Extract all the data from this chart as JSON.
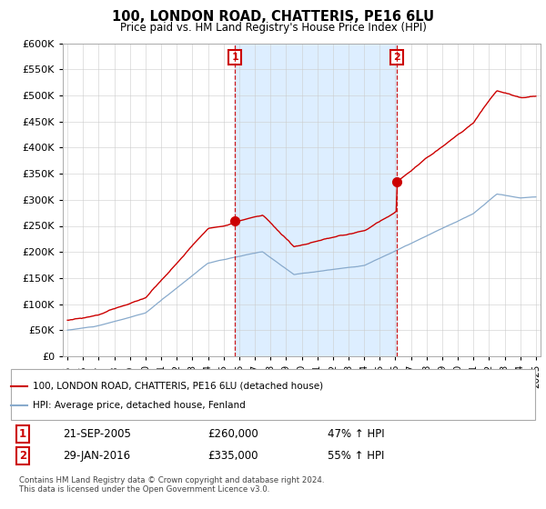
{
  "title": "100, LONDON ROAD, CHATTERIS, PE16 6LU",
  "subtitle": "Price paid vs. HM Land Registry's House Price Index (HPI)",
  "ylim": [
    0,
    600000
  ],
  "yticks": [
    0,
    50000,
    100000,
    150000,
    200000,
    250000,
    300000,
    350000,
    400000,
    450000,
    500000,
    550000,
    600000
  ],
  "xlim_start": 1994.7,
  "xlim_end": 2025.3,
  "sale1_date": 2005.73,
  "sale1_label": "1",
  "sale1_price": 260000,
  "sale1_hpi_pct": "47% ↑ HPI",
  "sale1_date_str": "21-SEP-2005",
  "sale2_date": 2016.08,
  "sale2_label": "2",
  "sale2_price": 335000,
  "sale2_hpi_pct": "55% ↑ HPI",
  "sale2_date_str": "29-JAN-2016",
  "red_color": "#cc0000",
  "blue_color": "#88aacc",
  "shade_color": "#ddeeff",
  "annotation_box_color": "#cc0000",
  "legend_label_red": "100, LONDON ROAD, CHATTERIS, PE16 6LU (detached house)",
  "legend_label_blue": "HPI: Average price, detached house, Fenland",
  "footer": "Contains HM Land Registry data © Crown copyright and database right 2024.\nThis data is licensed under the Open Government Licence v3.0.",
  "background_color": "#ffffff",
  "grid_color": "#cccccc"
}
